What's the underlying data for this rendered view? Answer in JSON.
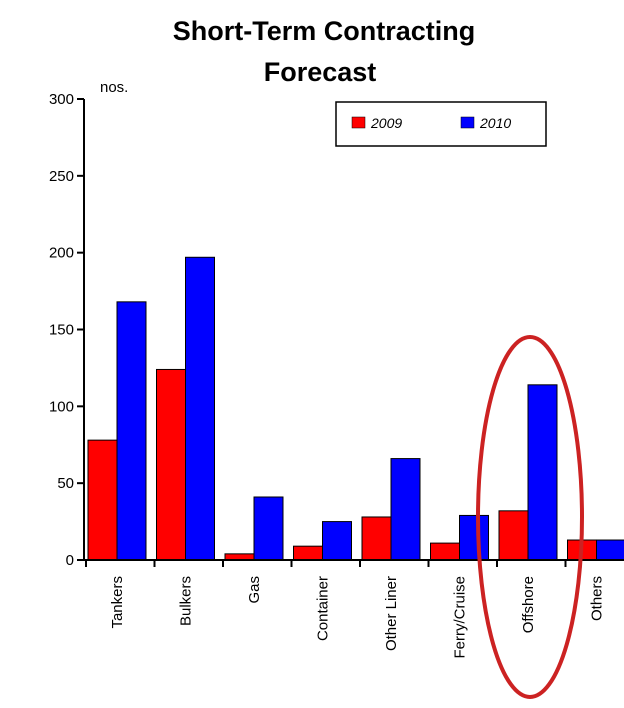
{
  "chart_data": {
    "type": "bar",
    "title": "Short-Term Contracting Forecast",
    "title_lines": [
      "Short-Term Contracting",
      "Forecast"
    ],
    "ylabel": "nos.",
    "xlabel": "",
    "ylim": [
      0,
      300
    ],
    "yticks": [
      0,
      50,
      100,
      150,
      200,
      250,
      300
    ],
    "categories": [
      "Tankers",
      "Bulkers",
      "Gas",
      "Container",
      "Other Liner",
      "Ferry/Cruise",
      "Offshore",
      "Others"
    ],
    "series": [
      {
        "name": "2009",
        "color": "#ff0000",
        "values": [
          78,
          124,
          4,
          9,
          28,
          11,
          32,
          13
        ]
      },
      {
        "name": "2010",
        "color": "#0000ff",
        "values": [
          168,
          197,
          41,
          25,
          66,
          29,
          114,
          13
        ]
      }
    ],
    "legend_position": "top-right",
    "grid": false,
    "annotation": {
      "type": "ellipse",
      "color": "#cc2222",
      "target_category": "Offshore"
    }
  }
}
